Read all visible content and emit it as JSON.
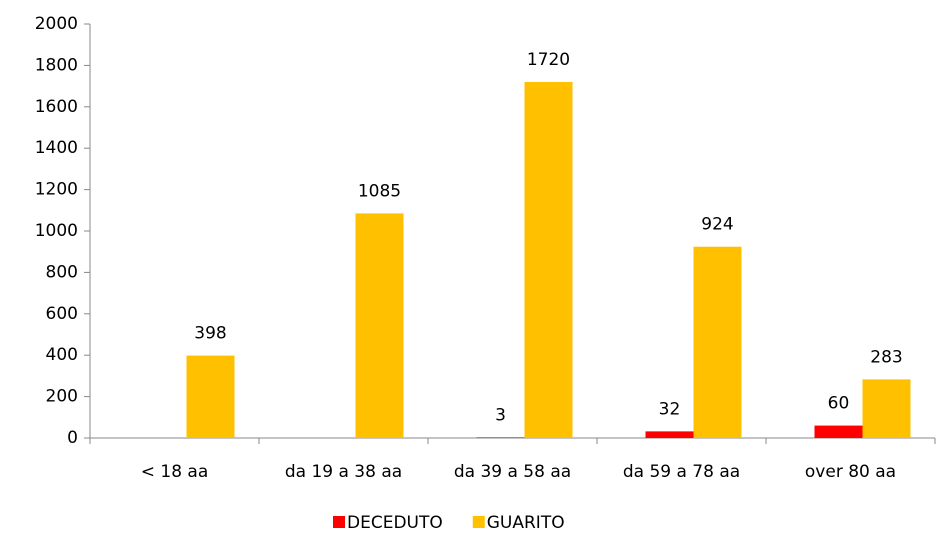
{
  "chart_data": {
    "type": "bar",
    "categories": [
      "< 18 aa",
      "da 19 a 38 aa",
      "da 39 a 58 aa",
      "da 59 a 78 aa",
      "over 80 aa"
    ],
    "series": [
      {
        "name": "DECEDUTO",
        "color": "#ff0000",
        "values": [
          null,
          null,
          3,
          32,
          60
        ]
      },
      {
        "name": "GUARITO",
        "color": "#ffc000",
        "values": [
          398,
          1085,
          1720,
          924,
          283
        ]
      }
    ],
    "ylim": [
      0,
      2000
    ],
    "yticks": [
      0,
      200,
      400,
      600,
      800,
      1000,
      1200,
      1400,
      1600,
      1800,
      2000
    ],
    "grid": false,
    "legend": "bottom"
  }
}
